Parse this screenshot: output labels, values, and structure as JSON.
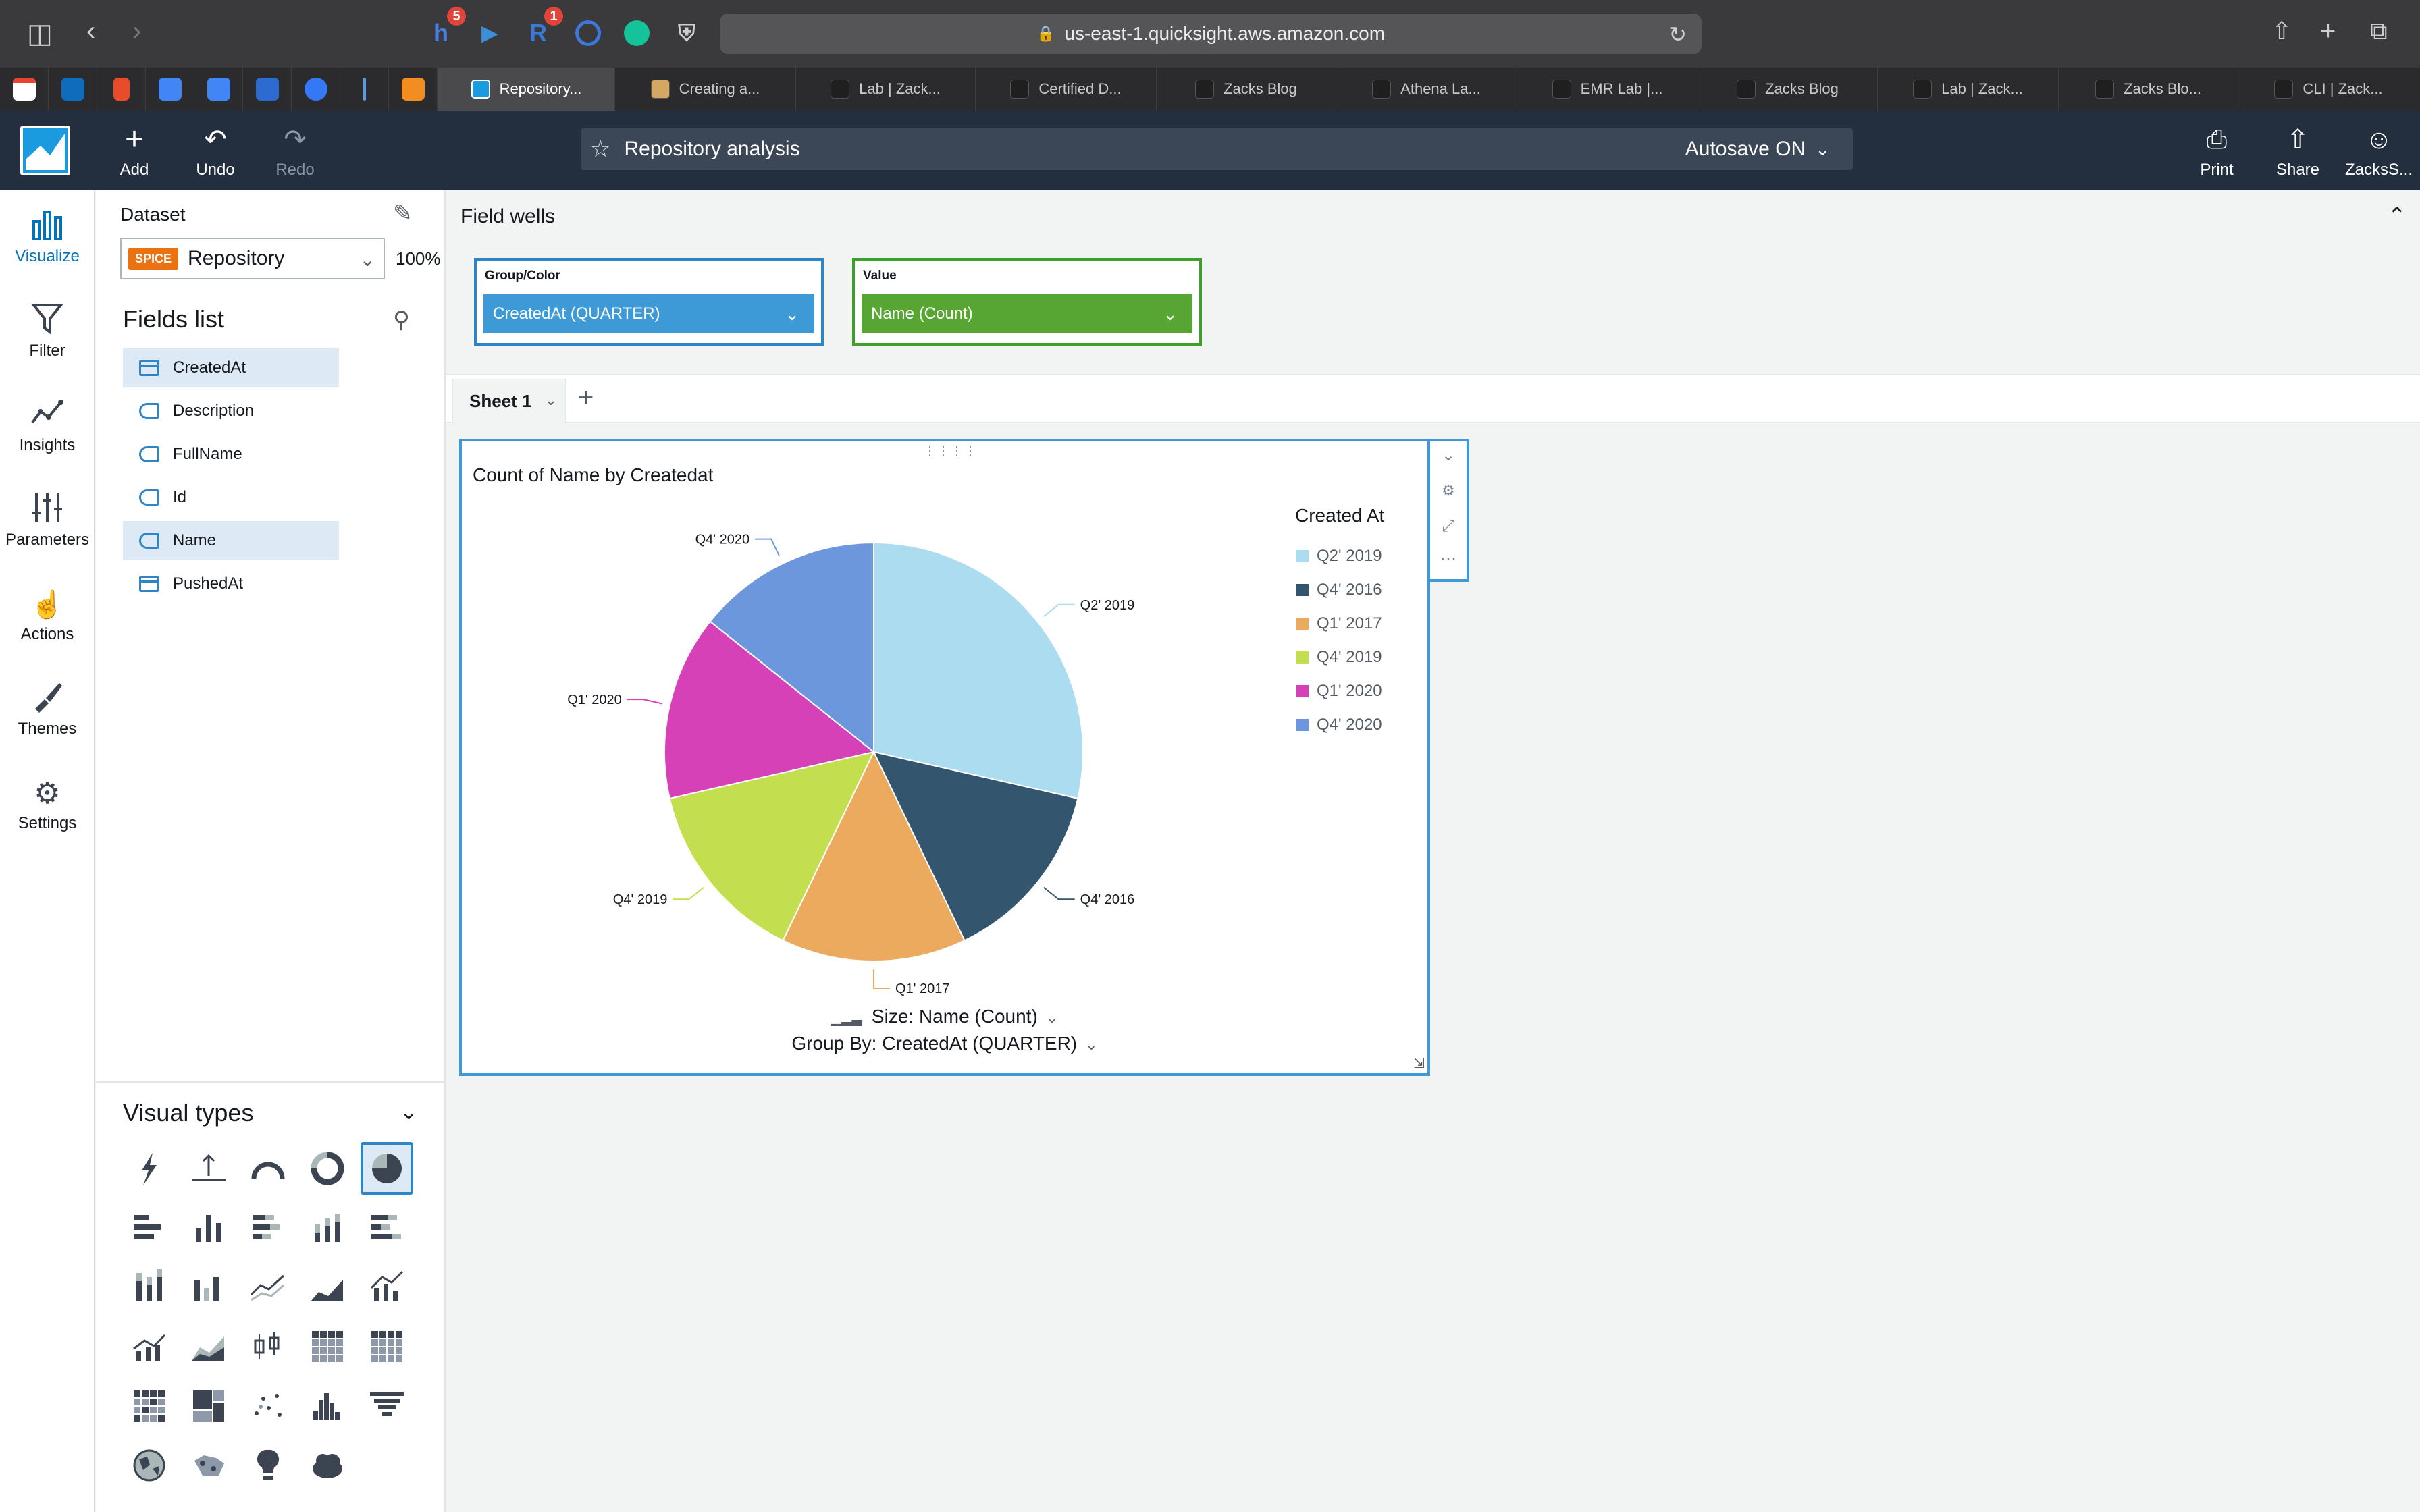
{
  "browser": {
    "url": "us-east-1.quicksight.aws.amazon.com",
    "ext_badges": [
      "5",
      "1"
    ],
    "tabs": [
      {
        "label": "Repository...",
        "active": true
      },
      {
        "label": "Creating a...",
        "active": false
      },
      {
        "label": "Lab | Zack...",
        "active": false
      },
      {
        "label": "Certified D...",
        "active": false
      },
      {
        "label": "Zacks Blog",
        "active": false
      },
      {
        "label": "Athena La...",
        "active": false
      },
      {
        "label": "EMR Lab |...",
        "active": false
      },
      {
        "label": "Zacks Blog",
        "active": false
      },
      {
        "label": "Lab | Zack...",
        "active": false
      },
      {
        "label": "Zacks Blo...",
        "active": false
      },
      {
        "label": "CLI | Zack...",
        "active": false
      }
    ]
  },
  "header": {
    "add": "Add",
    "undo": "Undo",
    "redo": "Redo",
    "analysis_name": "Repository analysis",
    "autosave": "Autosave ON",
    "print": "Print",
    "share": "Share",
    "user": "ZacksS..."
  },
  "rail": {
    "items": [
      "Visualize",
      "Filter",
      "Insights",
      "Parameters",
      "Actions",
      "Themes",
      "Settings"
    ]
  },
  "data_panel": {
    "dataset_label": "Dataset",
    "spice_badge": "SPICE",
    "dataset_name": "Repository",
    "spice_percent": "100%",
    "fields_title": "Fields list",
    "fields": [
      {
        "name": "CreatedAt",
        "type": "date",
        "selected": true
      },
      {
        "name": "Description",
        "type": "text",
        "selected": false
      },
      {
        "name": "FullName",
        "type": "text",
        "selected": false
      },
      {
        "name": "Id",
        "type": "text",
        "selected": false
      },
      {
        "name": "Name",
        "type": "text",
        "selected": true
      },
      {
        "name": "PushedAt",
        "type": "date",
        "selected": false
      }
    ],
    "visual_types_title": "Visual types"
  },
  "field_wells": {
    "title": "Field wells",
    "group_label": "Group/Color",
    "group_value": "CreatedAt (QUARTER)",
    "value_label": "Value",
    "value_value": "Name (Count)"
  },
  "sheet": {
    "tab_label": "Sheet 1"
  },
  "visual": {
    "footer_size": "Size: Name (Count)",
    "footer_group": "Group By: CreatedAt (QUARTER)"
  },
  "chart_data": {
    "type": "pie",
    "title": "Count of Name by Createdat",
    "legend_title": "Created At",
    "legend_position": "right",
    "categories": [
      "Q2' 2019",
      "Q4' 2016",
      "Q1' 2017",
      "Q4' 2019",
      "Q1' 2020",
      "Q4' 2020"
    ],
    "values": [
      4,
      2,
      2,
      2,
      2,
      2
    ],
    "colors": [
      "#acdcef",
      "#33566e",
      "#ebaa5e",
      "#c3df50",
      "#d641b8",
      "#6c97dd"
    ]
  }
}
